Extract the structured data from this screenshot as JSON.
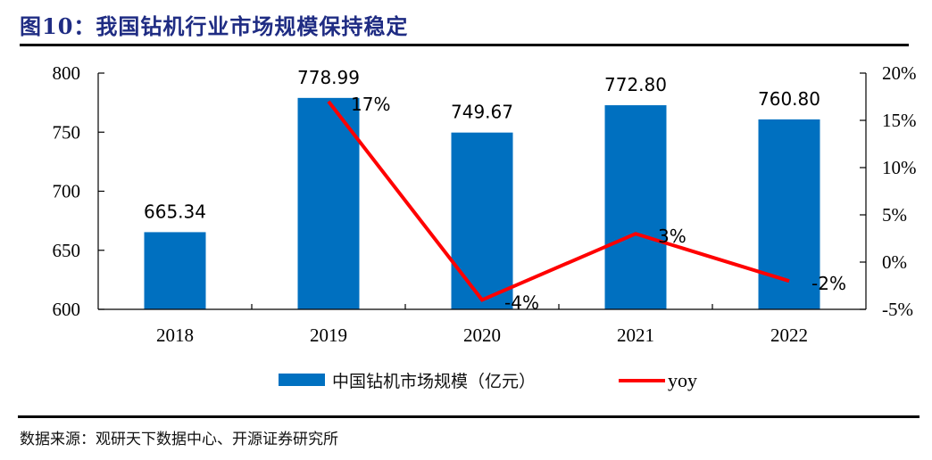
{
  "header": {
    "title": "图10：我国钻机行业市场规模保持稳定"
  },
  "footer": {
    "source": "数据来源：观研天下数据中心、开源证券研究所"
  },
  "colors": {
    "bar": "#0070C0",
    "line": "#FF0000",
    "title": "#1F2C83"
  },
  "chart_data": {
    "type": "bar",
    "title": "我国钻机行业市场规模保持稳定",
    "categories": [
      "2018",
      "2019",
      "2020",
      "2021",
      "2022"
    ],
    "series": [
      {
        "name": "中国钻机市场规模（亿元）",
        "type": "bar",
        "axis": "left",
        "values": [
          665.34,
          778.99,
          749.67,
          772.8,
          760.8
        ],
        "labels": [
          "665.34",
          "778.99",
          "749.67",
          "772.80",
          "760.80"
        ]
      },
      {
        "name": "yoy",
        "type": "line",
        "axis": "right",
        "values": [
          null,
          17,
          -4,
          3,
          -2
        ],
        "labels": [
          "",
          "17%",
          "-4%",
          "3%",
          "-2%"
        ]
      }
    ],
    "y_left": {
      "lim": [
        600,
        800
      ],
      "ticks": [
        600,
        650,
        700,
        750,
        800
      ],
      "tick_labels": [
        "600",
        "650",
        "700",
        "750",
        "800"
      ]
    },
    "y_right": {
      "lim": [
        -5,
        20
      ],
      "ticks": [
        -5,
        0,
        5,
        10,
        15,
        20
      ],
      "tick_labels": [
        "-5%",
        "0%",
        "5%",
        "10%",
        "15%",
        "20%"
      ]
    },
    "xlabel": "",
    "ylabel": "",
    "grid": false,
    "legend": {
      "position": "bottom",
      "entries": [
        "中国钻机市场规模（亿元）",
        "yoy"
      ]
    }
  }
}
